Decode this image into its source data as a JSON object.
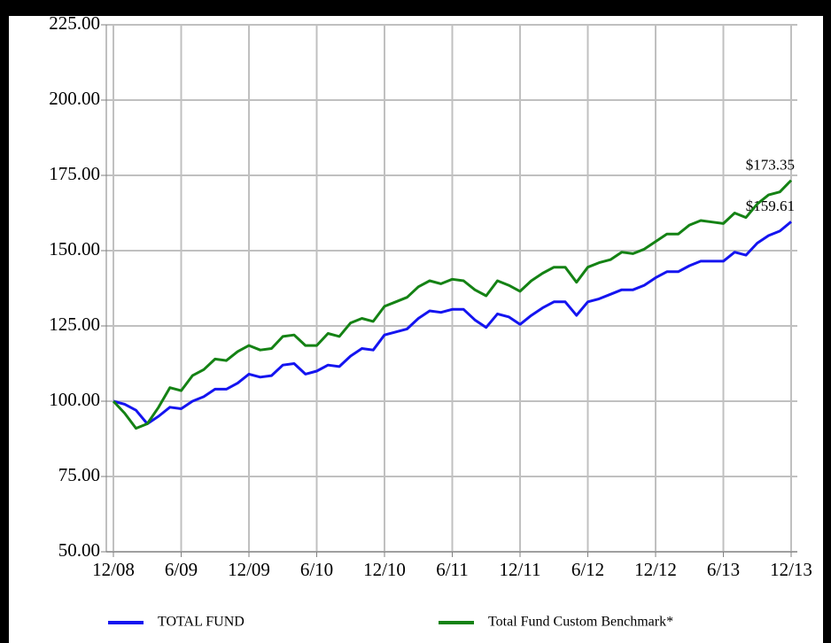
{
  "chart_data": {
    "type": "line",
    "categories": [
      "12/08",
      null,
      null,
      null,
      null,
      null,
      "6/09",
      null,
      null,
      null,
      null,
      null,
      "12/09",
      null,
      null,
      null,
      null,
      null,
      "6/10",
      null,
      null,
      null,
      null,
      null,
      "12/10",
      null,
      null,
      null,
      null,
      null,
      "6/11",
      null,
      null,
      null,
      null,
      null,
      "12/11",
      null,
      null,
      null,
      null,
      null,
      "6/12",
      null,
      null,
      null,
      null,
      null,
      "12/12",
      null,
      null,
      null,
      null,
      null,
      "6/13",
      null,
      null,
      null,
      null,
      null,
      "12/13"
    ],
    "ylim": [
      50,
      225
    ],
    "yticks": [
      {
        "value": 50,
        "label": "50.00"
      },
      {
        "value": 75,
        "label": "75.00"
      },
      {
        "value": 100,
        "label": "100.00"
      },
      {
        "value": 125,
        "label": "125.00"
      },
      {
        "value": 150,
        "label": "150.00"
      },
      {
        "value": 175,
        "label": "175.00"
      },
      {
        "value": 200,
        "label": "200.00"
      },
      {
        "value": 225,
        "label": "225.00"
      }
    ],
    "grid": true,
    "legend": "bottom",
    "series": [
      {
        "name": "TOTAL FUND",
        "color": "#1414f0",
        "values": [
          100,
          99,
          97,
          92.5,
          95,
          98,
          97.5,
          100,
          101.5,
          104,
          104,
          106,
          109,
          108,
          108.5,
          112,
          112.5,
          109,
          110,
          112,
          111.5,
          115,
          117.5,
          117,
          122,
          123,
          124,
          127.5,
          130,
          129.5,
          130.5,
          130.5,
          127,
          124.5,
          129,
          128,
          125.5,
          128.5,
          131,
          133,
          133,
          128.5,
          133,
          134,
          135.5,
          137,
          137,
          138.5,
          141,
          143,
          143,
          145,
          146.5,
          146.5,
          146.5,
          149.5,
          148.5,
          152.5,
          155,
          156.5,
          159.61
        ],
        "value_labels": [
          null,
          null,
          null,
          null,
          null,
          null,
          null,
          null,
          null,
          null,
          null,
          null,
          null,
          null,
          null,
          null,
          null,
          null,
          null,
          null,
          null,
          null,
          null,
          null,
          null,
          null,
          null,
          null,
          null,
          null,
          null,
          null,
          null,
          null,
          null,
          null,
          null,
          null,
          null,
          null,
          null,
          null,
          null,
          null,
          null,
          null,
          null,
          null,
          null,
          null,
          null,
          null,
          null,
          null,
          null,
          null,
          null,
          null,
          null,
          null,
          "$159.61"
        ]
      },
      {
        "name": "Total Fund Custom Benchmark*",
        "color": "#148214",
        "values": [
          100,
          96,
          91,
          92.5,
          98,
          104.5,
          103.5,
          108.5,
          110.5,
          114,
          113.5,
          116.5,
          118.5,
          117,
          117.5,
          121.5,
          122,
          118.5,
          118.5,
          122.5,
          121.5,
          126,
          127.5,
          126.5,
          131.5,
          133,
          134.5,
          138,
          140,
          139,
          140.5,
          140,
          137,
          135,
          140,
          138.5,
          136.5,
          140,
          142.5,
          144.5,
          144.5,
          139.5,
          144.5,
          146,
          147,
          149.5,
          149,
          150.5,
          153,
          155.5,
          155.5,
          158.5,
          160,
          159.5,
          159,
          162.5,
          161,
          165.5,
          168.5,
          169.5,
          173.35
        ],
        "value_labels": [
          null,
          null,
          null,
          null,
          null,
          null,
          null,
          null,
          null,
          null,
          null,
          null,
          null,
          null,
          null,
          null,
          null,
          null,
          null,
          null,
          null,
          null,
          null,
          null,
          null,
          null,
          null,
          null,
          null,
          null,
          null,
          null,
          null,
          null,
          null,
          null,
          null,
          null,
          null,
          null,
          null,
          null,
          null,
          null,
          null,
          null,
          null,
          null,
          null,
          null,
          null,
          null,
          null,
          null,
          null,
          null,
          null,
          null,
          null,
          null,
          "$173.35"
        ]
      }
    ]
  }
}
